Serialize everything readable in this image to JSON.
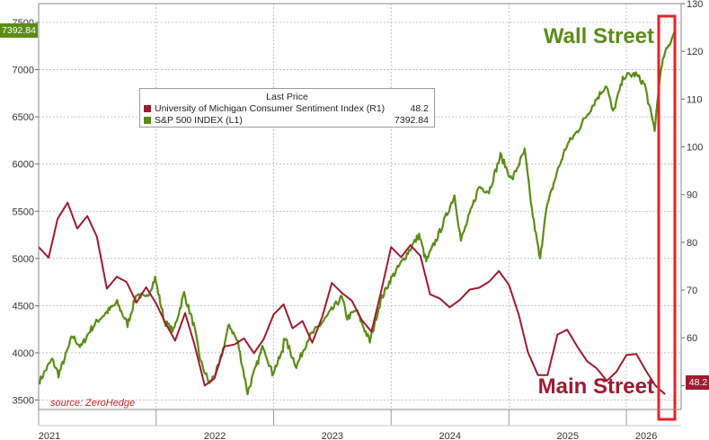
{
  "colors": {
    "sp500": "#5b8c17",
    "sentiment": "#9e1b32",
    "highlight": "#e8202a",
    "source": "#c0282d",
    "grid": "#b5b5b5"
  },
  "legend": {
    "title": "Last Price",
    "items": [
      {
        "name": "University of Michigan Consumer Sentiment Index  (R1)",
        "value": "48.2"
      },
      {
        "name": "S&P 500 INDEX  (L1)",
        "value": "7392.84"
      }
    ]
  },
  "annotations": {
    "wall_street": "Wall Street",
    "main_street": "Main Street",
    "source": "source: ZeroHedge"
  },
  "badges": {
    "left": "7392.84",
    "right": "48.2"
  },
  "chart_data": {
    "type": "line",
    "x_tick_labels": [
      "2021",
      "2022",
      "2023",
      "2024",
      "2025",
      "2026"
    ],
    "y_left": {
      "min": 3400,
      "max": 7700,
      "ticks": [
        3500,
        4000,
        4500,
        5000,
        5500,
        6000,
        6500,
        7000,
        7500
      ]
    },
    "y_right": {
      "min": 45,
      "max": 130,
      "ticks": [
        50,
        60,
        70,
        80,
        90,
        100,
        110,
        120,
        130
      ]
    },
    "grid": true,
    "legend_position": "top-left",
    "series": [
      {
        "name": "S&P 500 INDEX",
        "axis": "left",
        "points": [
          [
            "2021-01-04",
            3700
          ],
          [
            "2021-01-25",
            3830
          ],
          [
            "2021-02-12",
            3930
          ],
          [
            "2021-03-04",
            3770
          ],
          [
            "2021-03-26",
            3970
          ],
          [
            "2021-04-16",
            4180
          ],
          [
            "2021-05-12",
            4060
          ],
          [
            "2021-06-10",
            4240
          ],
          [
            "2021-07-06",
            4350
          ],
          [
            "2021-08-13",
            4470
          ],
          [
            "2021-09-02",
            4530
          ],
          [
            "2021-10-04",
            4300
          ],
          [
            "2021-11-02",
            4630
          ],
          [
            "2021-11-30",
            4570
          ],
          [
            "2021-12-29",
            4790
          ],
          [
            "2022-01-27",
            4330
          ],
          [
            "2022-02-24",
            4230
          ],
          [
            "2022-03-29",
            4630
          ],
          [
            "2022-04-28",
            4290
          ],
          [
            "2022-05-20",
            3900
          ],
          [
            "2022-06-16",
            3670
          ],
          [
            "2022-07-15",
            3860
          ],
          [
            "2022-08-16",
            4300
          ],
          [
            "2022-09-12",
            4110
          ],
          [
            "2022-10-12",
            3580
          ],
          [
            "2022-11-30",
            4080
          ],
          [
            "2022-12-28",
            3780
          ],
          [
            "2023-01-30",
            4020
          ],
          [
            "2023-02-02",
            4180
          ],
          [
            "2023-03-13",
            3855
          ],
          [
            "2023-04-18",
            4150
          ],
          [
            "2023-06-13",
            4370
          ],
          [
            "2023-07-31",
            4590
          ],
          [
            "2023-08-18",
            4370
          ],
          [
            "2023-09-15",
            4450
          ],
          [
            "2023-10-27",
            4120
          ],
          [
            "2023-11-30",
            4560
          ],
          [
            "2023-12-29",
            4770
          ],
          [
            "2024-02-29",
            5100
          ],
          [
            "2024-03-28",
            5250
          ],
          [
            "2024-04-19",
            4970
          ],
          [
            "2024-05-31",
            5280
          ],
          [
            "2024-07-16",
            5670
          ],
          [
            "2024-08-05",
            5190
          ],
          [
            "2024-09-30",
            5760
          ],
          [
            "2024-10-31",
            5710
          ],
          [
            "2024-12-06",
            6090
          ],
          [
            "2025-01-10",
            5830
          ],
          [
            "2025-02-19",
            6140
          ],
          [
            "2025-03-13",
            5520
          ],
          [
            "2025-04-08",
            4980
          ],
          [
            "2025-04-24",
            5480
          ],
          [
            "2025-05-30",
            5910
          ],
          [
            "2025-06-30",
            6200
          ],
          [
            "2025-07-31",
            6340
          ],
          [
            "2025-09-30",
            6690
          ],
          [
            "2025-10-31",
            6840
          ],
          [
            "2025-11-20",
            6540
          ],
          [
            "2025-12-24",
            6930
          ],
          [
            "2026-01-30",
            6950
          ],
          [
            "2026-02-27",
            6840
          ],
          [
            "2026-03-20",
            6500
          ],
          [
            "2026-03-30",
            6370
          ],
          [
            "2026-04-14",
            6900
          ],
          [
            "2026-04-28",
            7150
          ],
          [
            "2026-05-12",
            7250
          ],
          [
            "2026-05-29",
            7392.84
          ]
        ]
      },
      {
        "name": "University of Michigan Consumer Sentiment Index",
        "axis": "right",
        "points": [
          [
            "2021-01-01",
            79.0
          ],
          [
            "2021-02-01",
            76.8
          ],
          [
            "2021-03-01",
            84.9
          ],
          [
            "2021-04-01",
            88.3
          ],
          [
            "2021-05-01",
            82.9
          ],
          [
            "2021-06-01",
            85.5
          ],
          [
            "2021-07-01",
            81.2
          ],
          [
            "2021-08-01",
            70.3
          ],
          [
            "2021-09-01",
            72.8
          ],
          [
            "2021-10-01",
            71.7
          ],
          [
            "2021-11-01",
            67.4
          ],
          [
            "2021-12-01",
            70.6
          ],
          [
            "2022-01-01",
            67.2
          ],
          [
            "2022-02-01",
            62.8
          ],
          [
            "2022-03-01",
            59.4
          ],
          [
            "2022-04-01",
            65.2
          ],
          [
            "2022-05-01",
            58.4
          ],
          [
            "2022-06-01",
            50.0
          ],
          [
            "2022-07-01",
            51.5
          ],
          [
            "2022-08-01",
            58.2
          ],
          [
            "2022-09-01",
            58.6
          ],
          [
            "2022-10-01",
            59.9
          ],
          [
            "2022-11-01",
            56.8
          ],
          [
            "2022-12-01",
            59.7
          ],
          [
            "2023-01-01",
            64.9
          ],
          [
            "2023-02-01",
            67.0
          ],
          [
            "2023-03-01",
            62.0
          ],
          [
            "2023-04-01",
            63.5
          ],
          [
            "2023-05-01",
            59.0
          ],
          [
            "2023-06-01",
            64.4
          ],
          [
            "2023-07-01",
            71.5
          ],
          [
            "2023-08-01",
            69.4
          ],
          [
            "2023-09-01",
            67.8
          ],
          [
            "2023-10-01",
            63.8
          ],
          [
            "2023-11-01",
            61.3
          ],
          [
            "2023-12-01",
            69.7
          ],
          [
            "2024-01-01",
            79.0
          ],
          [
            "2024-02-01",
            76.9
          ],
          [
            "2024-03-01",
            79.4
          ],
          [
            "2024-04-01",
            77.2
          ],
          [
            "2024-05-01",
            69.1
          ],
          [
            "2024-06-01",
            68.2
          ],
          [
            "2024-07-01",
            66.4
          ],
          [
            "2024-08-01",
            67.9
          ],
          [
            "2024-09-01",
            70.1
          ],
          [
            "2024-10-01",
            70.5
          ],
          [
            "2024-11-01",
            71.8
          ],
          [
            "2024-12-01",
            74.0
          ],
          [
            "2025-01-01",
            71.1
          ],
          [
            "2025-02-01",
            64.7
          ],
          [
            "2025-03-01",
            57.0
          ],
          [
            "2025-04-01",
            52.2
          ],
          [
            "2025-05-01",
            52.2
          ],
          [
            "2025-06-01",
            60.7
          ],
          [
            "2025-07-01",
            61.7
          ],
          [
            "2025-08-01",
            58.2
          ],
          [
            "2025-09-01",
            55.1
          ],
          [
            "2025-10-01",
            53.6
          ],
          [
            "2025-11-01",
            51.0
          ],
          [
            "2025-12-01",
            52.9
          ],
          [
            "2026-01-01",
            56.4
          ],
          [
            "2026-02-01",
            56.6
          ],
          [
            "2026-03-01",
            53.3
          ],
          [
            "2026-04-01",
            50.0
          ],
          [
            "2026-05-01",
            48.2
          ]
        ]
      }
    ]
  }
}
